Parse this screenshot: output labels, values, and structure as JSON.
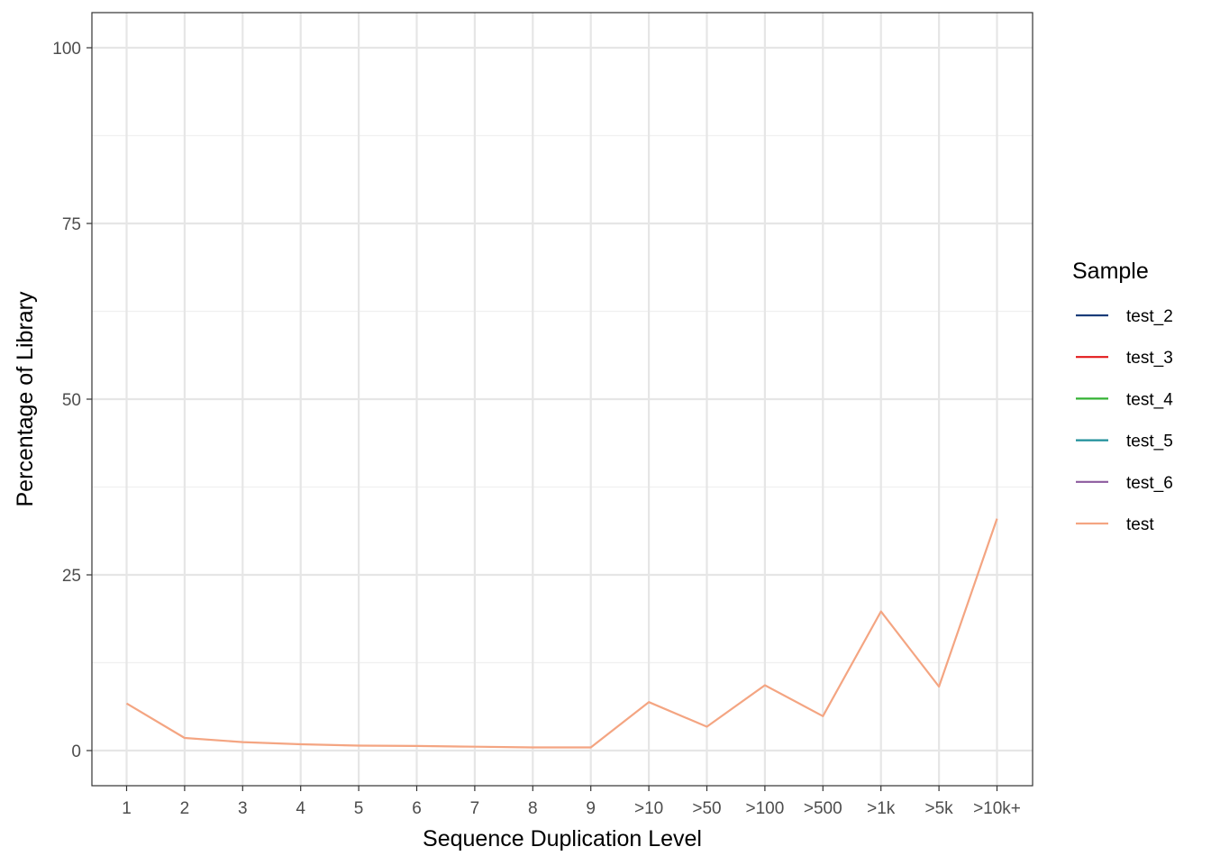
{
  "chart_data": {
    "type": "line",
    "xlabel": "Sequence Duplication Level",
    "ylabel": "Percentage of Library",
    "categories": [
      "1",
      "2",
      "3",
      "4",
      "5",
      "6",
      "7",
      "8",
      "9",
      ">10",
      ">50",
      ">100",
      ">500",
      ">1k",
      ">5k",
      ">10k+"
    ],
    "ylim": [
      -5,
      105
    ],
    "yticks": [
      0,
      25,
      50,
      75,
      100
    ],
    "grid": true,
    "legend": {
      "title": "Sample",
      "placement": "right",
      "entries": [
        {
          "name": "test_2",
          "color": "#1a3d7a"
        },
        {
          "name": "test_3",
          "color": "#e31a1c"
        },
        {
          "name": "test_4",
          "color": "#33b233"
        },
        {
          "name": "test_5",
          "color": "#1f8f9a"
        },
        {
          "name": "test_6",
          "color": "#8c5a9e"
        },
        {
          "name": "test",
          "color": "#f4a582"
        }
      ]
    },
    "series": [
      {
        "name": "test",
        "color": "#f4a582",
        "values": [
          6.7,
          1.8,
          1.2,
          0.9,
          0.7,
          0.65,
          0.55,
          0.45,
          0.45,
          6.9,
          3.4,
          9.3,
          4.9,
          19.8,
          9.1,
          33.0
        ]
      }
    ]
  }
}
